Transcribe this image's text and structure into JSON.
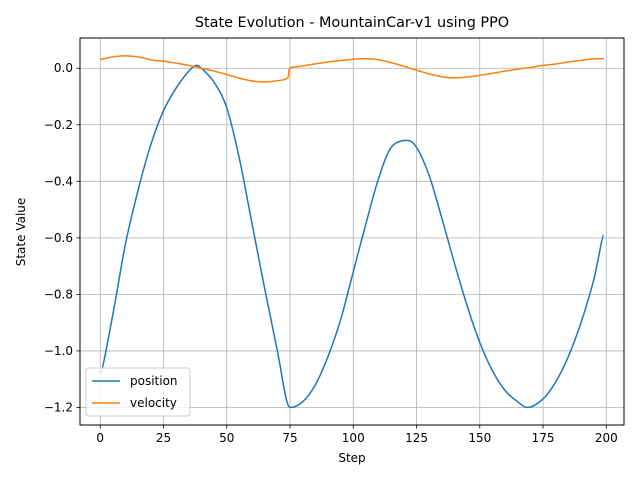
{
  "chart_data": {
    "type": "line",
    "title": "State Evolution - MountainCar-v1 using PPO",
    "xlabel": "Step",
    "ylabel": "State Value",
    "xlim": [
      -8,
      207
    ],
    "ylim": [
      -1.262,
      0.107
    ],
    "xticks": [
      0,
      25,
      50,
      75,
      100,
      125,
      150,
      175,
      200
    ],
    "yticks": [
      0.0,
      -0.2,
      -0.4,
      -0.6,
      -0.8,
      -1.0,
      -1.2
    ],
    "xtick_labels": [
      "0",
      "25",
      "50",
      "75",
      "100",
      "125",
      "150",
      "175",
      "200"
    ],
    "ytick_labels": [
      "0.0",
      "−0.2",
      "−0.4",
      "−0.6",
      "−0.8",
      "−1.0",
      "−1.2"
    ],
    "grid": true,
    "legend_position": "lower-left",
    "series": [
      {
        "name": "position",
        "color": "#1f77b4",
        "x": [
          0,
          5,
          10,
          15,
          20,
          25,
          30,
          35,
          38,
          40,
          45,
          50,
          55,
          60,
          65,
          70,
          75,
          80,
          85,
          90,
          95,
          100,
          105,
          110,
          115,
          121,
          125,
          130,
          135,
          140,
          145,
          150,
          155,
          160,
          165,
          169,
          175,
          180,
          185,
          190,
          195,
          199
        ],
        "y": [
          -1.08,
          -0.87,
          -0.62,
          -0.43,
          -0.27,
          -0.15,
          -0.07,
          -0.01,
          0.01,
          0.0,
          -0.05,
          -0.14,
          -0.32,
          -0.55,
          -0.78,
          -1.0,
          -1.2,
          -1.18,
          -1.12,
          -1.02,
          -0.89,
          -0.72,
          -0.55,
          -0.39,
          -0.28,
          -0.255,
          -0.28,
          -0.38,
          -0.53,
          -0.69,
          -0.84,
          -0.97,
          -1.07,
          -1.14,
          -1.18,
          -1.2,
          -1.17,
          -1.11,
          -1.02,
          -0.9,
          -0.75,
          -0.59
        ]
      },
      {
        "name": "velocity",
        "color": "#ff7f0e",
        "x": [
          0,
          5,
          10,
          15,
          20,
          22,
          25,
          30,
          35,
          40,
          45,
          50,
          55,
          60,
          65,
          70,
          74,
          75,
          80,
          90,
          100,
          105,
          110,
          115,
          120,
          125,
          130,
          135,
          140,
          145,
          150,
          155,
          160,
          165,
          170,
          175,
          180,
          185,
          190,
          195,
          199
        ],
        "y": [
          0.032,
          0.04,
          0.044,
          0.04,
          0.03,
          0.027,
          0.025,
          0.018,
          0.01,
          0.0,
          -0.01,
          -0.022,
          -0.035,
          -0.045,
          -0.048,
          -0.044,
          -0.035,
          0.0,
          0.008,
          0.022,
          0.032,
          0.034,
          0.03,
          0.02,
          0.007,
          -0.007,
          -0.02,
          -0.03,
          -0.034,
          -0.031,
          -0.025,
          -0.018,
          -0.01,
          -0.003,
          0.003,
          0.01,
          0.015,
          0.022,
          0.028,
          0.033,
          0.034
        ]
      }
    ]
  }
}
